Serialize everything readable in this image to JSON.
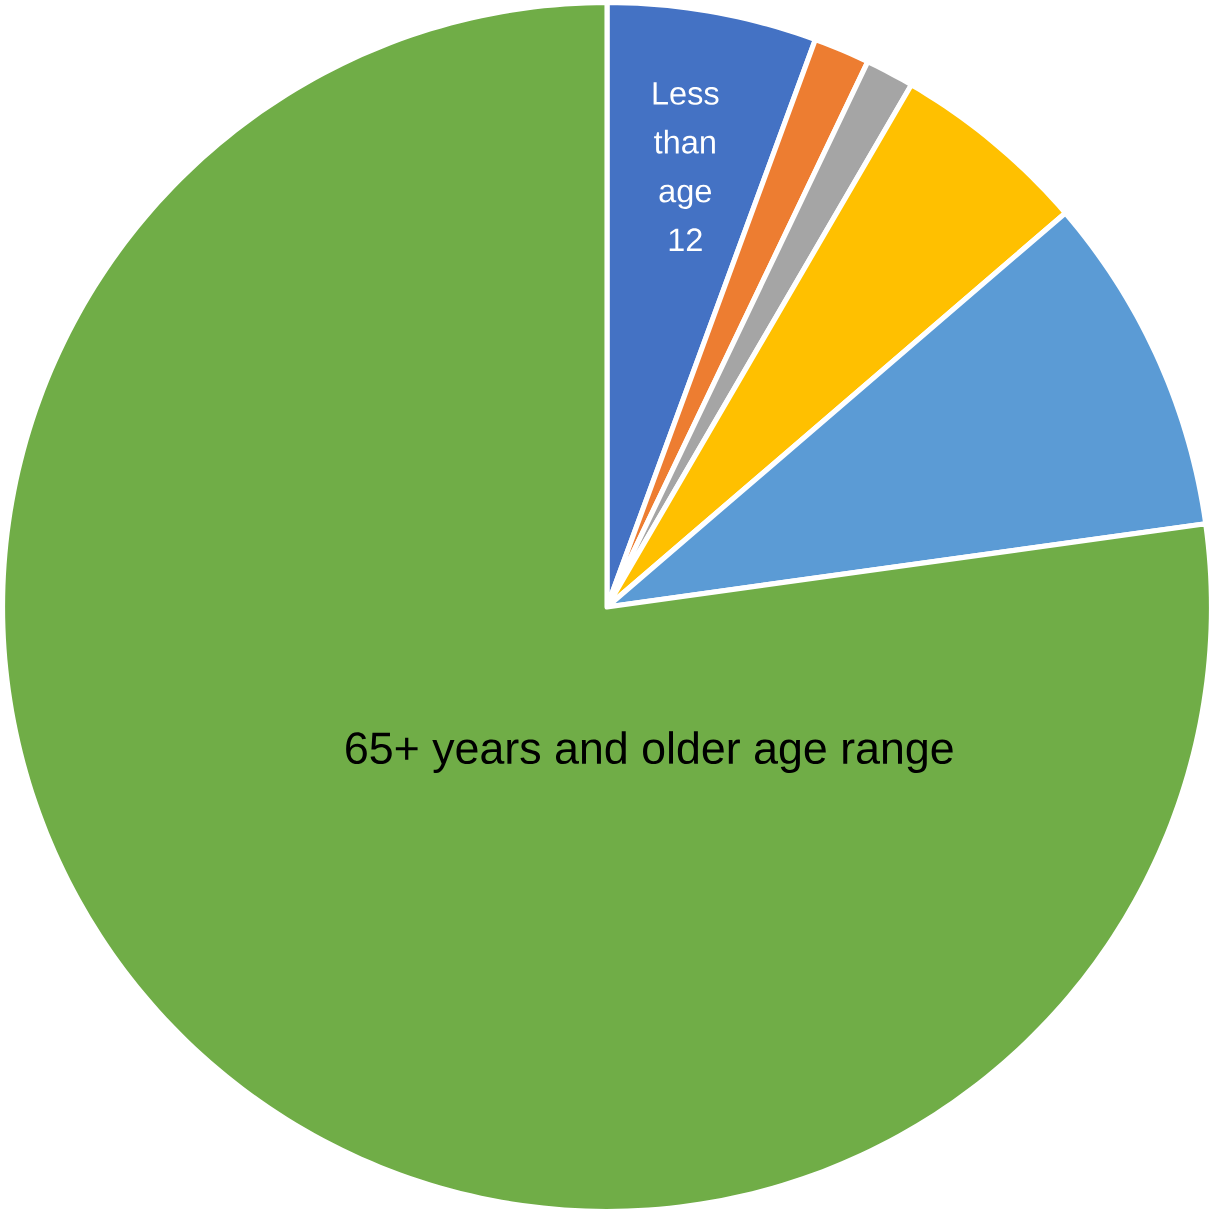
{
  "chart_data": {
    "type": "pie",
    "categories": [
      "Less than age 12",
      null,
      null,
      null,
      null,
      "65+ years and older age range"
    ],
    "values": [
      5.6,
      1.5,
      1.3,
      5.3,
      9.1,
      77.2
    ],
    "colors": [
      "#4472c4",
      "#ed7d31",
      "#a5a5a5",
      "#ffc000",
      "#5b9bd5",
      "#70ad47"
    ]
  }
}
